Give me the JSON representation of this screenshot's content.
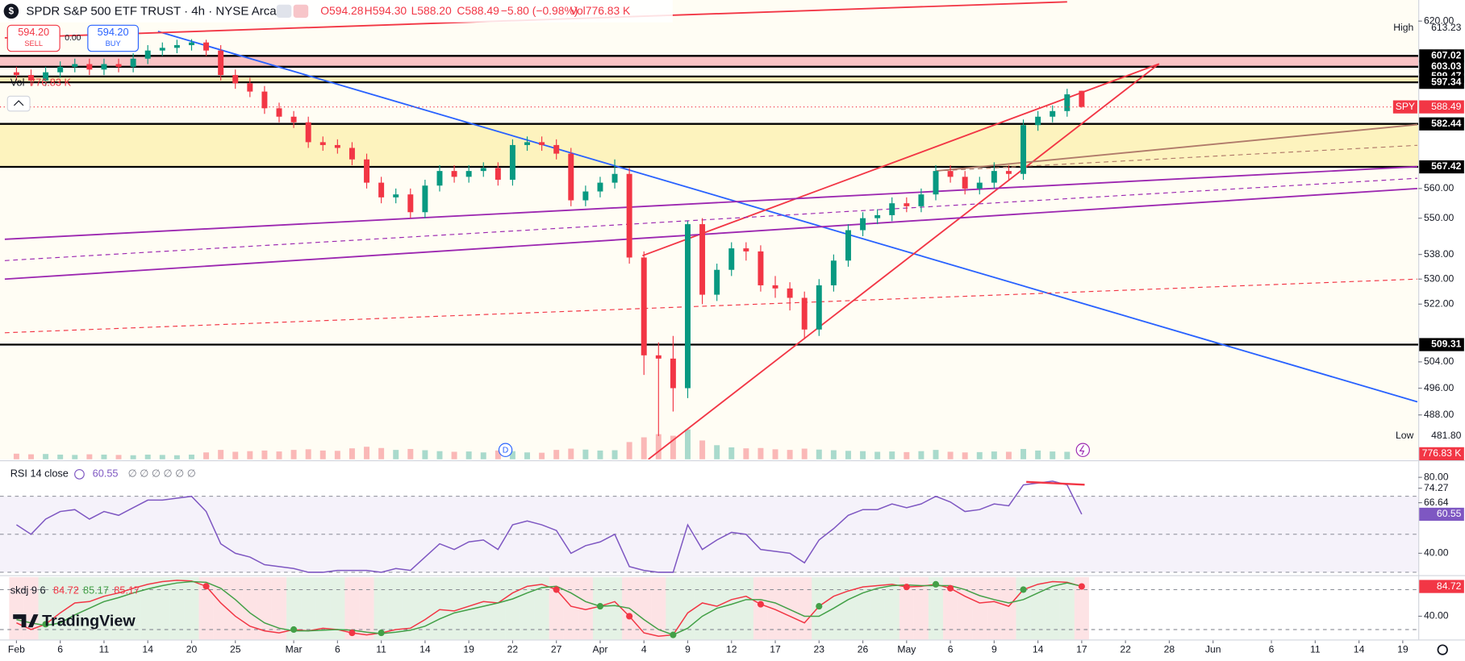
{
  "header": {
    "symbol_icon": "$",
    "open": "O594.28",
    "high": "H594.30",
    "low": "L588.20",
    "close": "C588.49",
    "change": "−5.80 (−0.98%)",
    "volume": "Vol776.83 K"
  },
  "trade": {
    "sell_price": "594.20",
    "sell": "SELL",
    "spread": "0.00",
    "buy_price": "594.20",
    "buy": "BUY"
  },
  "overlay": {
    "vol_label": "Vol",
    "vol_value": "776.83 K",
    "marker": "D",
    "logo": "TradingView"
  },
  "chart_data": [
    {
      "type": "candlestick",
      "title": "SPDR S&P 500 ETF TRUST · 4h · NYSE Arca",
      "x": [
        0,
        1,
        2,
        3,
        4,
        5,
        6,
        7,
        8,
        9,
        10,
        11,
        12,
        13,
        14,
        15,
        16,
        17,
        18,
        19,
        20,
        21,
        22,
        23,
        24,
        25,
        26,
        27,
        28,
        29,
        30,
        31,
        32,
        33,
        34,
        35,
        36,
        37,
        38,
        39,
        40,
        41,
        42,
        43,
        44,
        45,
        46,
        47,
        48,
        49,
        50,
        51,
        52,
        53,
        54,
        55,
        56,
        57,
        58,
        59,
        60,
        61,
        62,
        63,
        64,
        65,
        66,
        67,
        68,
        69,
        70,
        71,
        72,
        73
      ],
      "open": [
        601,
        600,
        598,
        601,
        603,
        604,
        602,
        604,
        603,
        606,
        609,
        610,
        611,
        612,
        609,
        600,
        597,
        594,
        588,
        585,
        583,
        576,
        575,
        574,
        570,
        562,
        557,
        558,
        552,
        561,
        566,
        564,
        566,
        567,
        563,
        575,
        576,
        575,
        572,
        556,
        559,
        562,
        565,
        537,
        506,
        505,
        496,
        548,
        525,
        533,
        540,
        539,
        528,
        527,
        524,
        514,
        528,
        536,
        546,
        550,
        551,
        555,
        554,
        558,
        566,
        564,
        560,
        562,
        566,
        565,
        582,
        585,
        587,
        594.28
      ],
      "high": [
        603,
        602,
        603,
        605,
        606,
        606,
        606,
        606,
        608,
        611,
        612,
        613,
        613.23,
        613,
        611,
        602,
        599,
        596,
        590,
        587,
        585,
        578,
        577,
        576,
        572,
        564,
        560,
        560,
        563,
        568,
        568,
        568,
        569,
        569,
        577,
        578,
        578,
        577,
        574,
        561,
        564,
        570,
        567,
        539,
        510,
        512,
        549,
        550,
        535,
        542,
        542,
        541,
        531,
        529,
        526,
        530,
        538,
        548,
        552,
        553,
        557,
        557,
        560,
        568,
        568,
        566,
        564,
        569,
        568,
        584,
        587,
        589,
        595,
        594.3
      ],
      "low": [
        598,
        596,
        596,
        599,
        601,
        600,
        600,
        601,
        601,
        604,
        607,
        608,
        609,
        607,
        598,
        595,
        592,
        586,
        583,
        581,
        574,
        573,
        572,
        568,
        560,
        555,
        555,
        550,
        550,
        559,
        562,
        562,
        564,
        561,
        561,
        573,
        573,
        570,
        554,
        554,
        557,
        560,
        535,
        500,
        481.8,
        489,
        493,
        522,
        523,
        531,
        536,
        526,
        524,
        520,
        511,
        512,
        526,
        534,
        544,
        548,
        549,
        552,
        552,
        556,
        562,
        558,
        558,
        560,
        563,
        563,
        580,
        583,
        585,
        588.2
      ],
      "close": [
        600,
        598,
        601,
        603,
        604,
        602,
        604,
        603,
        606,
        609,
        610,
        611,
        612,
        609,
        600,
        597,
        594,
        588,
        585,
        583,
        576,
        575,
        574,
        570,
        562,
        557,
        558,
        552,
        561,
        566,
        564,
        566,
        567,
        563,
        575,
        576,
        575,
        572,
        556,
        559,
        562,
        565,
        537,
        506,
        505,
        496,
        548,
        525,
        533,
        540,
        539,
        528,
        527,
        524,
        514,
        528,
        536,
        546,
        550,
        551,
        555,
        554,
        558,
        566,
        564,
        560,
        562,
        566,
        565,
        582,
        585,
        587,
        593,
        588.49
      ],
      "volume": [
        18000,
        16000,
        17000,
        15000,
        14000,
        16000,
        15000,
        14000,
        13000,
        15000,
        14000,
        13000,
        15000,
        22000,
        30000,
        24000,
        26000,
        28000,
        25000,
        30000,
        32000,
        28000,
        27000,
        35000,
        40000,
        36000,
        30000,
        33000,
        29000,
        26000,
        24000,
        25000,
        22000,
        28000,
        26000,
        22000,
        21000,
        30000,
        34000,
        31000,
        28000,
        29000,
        55000,
        70000,
        80000,
        75000,
        95000,
        60000,
        45000,
        38000,
        35000,
        36000,
        32000,
        30000,
        34000,
        31000,
        29000,
        27000,
        26000,
        24000,
        25000,
        23000,
        26000,
        30000,
        24000,
        22000,
        23000,
        25000,
        24000,
        33000,
        28000,
        25000,
        24000,
        776.83
      ],
      "volume_label": "776.83 K",
      "symbol": "SPY",
      "up_color": "#089981",
      "down_color": "#f23645",
      "log_scale": true,
      "ylim": [
        475,
        628
      ],
      "yticks": [
        {
          "value": 620,
          "label": "620.00"
        },
        {
          "value": 560,
          "label": "560.00"
        },
        {
          "value": 550,
          "label": "550.00"
        },
        {
          "value": 538,
          "label": "538.00"
        },
        {
          "value": 530,
          "label": "530.00"
        },
        {
          "value": 522,
          "label": "522.00"
        },
        {
          "value": 504,
          "label": "504.00"
        },
        {
          "value": 496,
          "label": "496.00"
        },
        {
          "value": 488,
          "label": "488.00"
        }
      ],
      "xlim": [
        -1,
        96
      ],
      "xticks": [
        {
          "value": 0,
          "label": "Feb"
        },
        {
          "value": 3,
          "label": "6"
        },
        {
          "value": 6,
          "label": "11"
        },
        {
          "value": 9,
          "label": "14"
        },
        {
          "value": 12,
          "label": "20"
        },
        {
          "value": 15,
          "label": "25"
        },
        {
          "value": 19,
          "label": "Mar"
        },
        {
          "value": 22,
          "label": "6"
        },
        {
          "value": 25,
          "label": "11"
        },
        {
          "value": 28,
          "label": "14"
        },
        {
          "value": 31,
          "label": "19"
        },
        {
          "value": 34,
          "label": "22"
        },
        {
          "value": 37,
          "label": "27"
        },
        {
          "value": 40,
          "label": "Apr"
        },
        {
          "value": 43,
          "label": "4"
        },
        {
          "value": 46,
          "label": "9"
        },
        {
          "value": 49,
          "label": "12"
        },
        {
          "value": 52,
          "label": "17"
        },
        {
          "value": 55,
          "label": "23"
        },
        {
          "value": 58,
          "label": "26"
        },
        {
          "value": 61,
          "label": "May"
        },
        {
          "value": 64,
          "label": "6"
        },
        {
          "value": 67,
          "label": "9"
        },
        {
          "value": 70,
          "label": "14"
        },
        {
          "value": 73,
          "label": "17"
        },
        {
          "value": 76,
          "label": "22"
        },
        {
          "value": 79,
          "label": "28"
        },
        {
          "value": 82,
          "label": "Jun"
        },
        {
          "value": 86,
          "label": "6"
        },
        {
          "value": 89,
          "label": "11"
        },
        {
          "value": 92,
          "label": "14"
        },
        {
          "value": 95,
          "label": "19"
        }
      ],
      "high_text": "High",
      "high_value": "613.23",
      "low_text": "Low",
      "low_value": "481.80",
      "levels": [
        607.02,
        603.03,
        599.47,
        597.34,
        582.44,
        567.42,
        509.31
      ],
      "level_color": "#000000",
      "zones": [
        {
          "from": 603.03,
          "to": 607.02,
          "color": "#f7b4b9"
        },
        {
          "from": 597.34,
          "to": 599.47,
          "color": "#fde9a6"
        },
        {
          "from": 567.42,
          "to": 582.44,
          "color": "#fdf0b0"
        }
      ],
      "trendlines": [
        {
          "x": [
            9.7,
            96
          ],
          "y": [
            616.1,
            491.9
          ],
          "color": "#2962ff",
          "dashed": false
        },
        {
          "x": [
            -0.8,
            72
          ],
          "y": [
            613.7,
            627.3
          ],
          "color": "#f23645",
          "dashed": false
        },
        {
          "x": [
            42.9,
            78.3
          ],
          "y": [
            537.6,
            604.1
          ],
          "color": "#f23645",
          "dashed": false
        },
        {
          "x": [
            43.3,
            78.3
          ],
          "y": [
            475,
            604.1
          ],
          "color": "#f23645",
          "dashed": false
        },
        {
          "x": [
            -0.8,
            96
          ],
          "y": [
            543,
            567.5
          ],
          "color": "#9c27b0",
          "dashed": false
        },
        {
          "x": [
            -0.8,
            96
          ],
          "y": [
            530,
            560
          ],
          "color": "#9c27b0",
          "dashed": false
        },
        {
          "x": [
            -0.8,
            96
          ],
          "y": [
            536,
            563.5
          ],
          "color": "#9c27b0",
          "dashed": true
        },
        {
          "x": [
            -0.8,
            96
          ],
          "y": [
            513,
            530
          ],
          "color": "#f23645",
          "dashed": true
        },
        {
          "x": [
            63,
            96
          ],
          "y": [
            566,
            582.2
          ],
          "color": "#b07a6a",
          "dashed": false
        },
        {
          "x": [
            63,
            96
          ],
          "y": [
            566,
            574.9
          ],
          "color": "#b07a6a",
          "dashed": true
        }
      ]
    },
    {
      "type": "line",
      "title": "RSI 14 close",
      "legend_extra": "∅ ∅ ∅ ∅ ∅ ∅",
      "color": "#7e57c2",
      "values": [
        55,
        50,
        58,
        62,
        63,
        58,
        62,
        60,
        64,
        68,
        68,
        69,
        70,
        62,
        45,
        40,
        38,
        34,
        33,
        32,
        30,
        30,
        31,
        31,
        31,
        30,
        32,
        31,
        38,
        45,
        42,
        46,
        47,
        42,
        55,
        57,
        55,
        52,
        40,
        44,
        46,
        50,
        33,
        31,
        30,
        30,
        55,
        42,
        47,
        51,
        50,
        42,
        41,
        40,
        35,
        47,
        53,
        60,
        63,
        63,
        66,
        64,
        66,
        70,
        67,
        62,
        63,
        66,
        65,
        76,
        77,
        78,
        76,
        60.55
      ],
      "ylim": [
        29,
        88
      ],
      "yticks": [
        {
          "value": 80,
          "label": "80.00"
        },
        74.27,
        66.64,
        {
          "value": 40,
          "label": "40.00"
        }
      ],
      "band": [
        30,
        70
      ],
      "hlines": [
        70,
        50,
        30
      ],
      "lines": [
        {
          "x": [
            69.2,
            73.2
          ],
          "y": [
            77.6,
            76.1
          ],
          "color": "#f23645"
        }
      ]
    },
    {
      "type": "line",
      "title": "skdj 9 6",
      "legend_values": [
        84.72,
        85.17,
        85.17
      ],
      "series": [
        {
          "color": "#f23645",
          "values": [
            30,
            20,
            28,
            45,
            60,
            62,
            70,
            75,
            82,
            88,
            92,
            94,
            93,
            85,
            60,
            40,
            25,
            18,
            15,
            20,
            18,
            22,
            20,
            15,
            12,
            15,
            20,
            22,
            35,
            50,
            48,
            55,
            62,
            60,
            75,
            85,
            88,
            80,
            55,
            50,
            55,
            62,
            40,
            15,
            10,
            12,
            45,
            60,
            55,
            65,
            70,
            58,
            50,
            40,
            30,
            55,
            70,
            78,
            84,
            86,
            88,
            84,
            85,
            88,
            82,
            70,
            60,
            62,
            55,
            80,
            88,
            92,
            91,
            84.72
          ]
        },
        {
          "color": "#43a047",
          "values": [
            35,
            30,
            26,
            30,
            42,
            52,
            62,
            68,
            75,
            81,
            86,
            90,
            92,
            91,
            82,
            65,
            45,
            30,
            22,
            18,
            18,
            19,
            20,
            19,
            16,
            14,
            16,
            19,
            25,
            36,
            45,
            50,
            55,
            60,
            66,
            75,
            83,
            85,
            75,
            62,
            55,
            56,
            52,
            35,
            20,
            12,
            22,
            40,
            52,
            58,
            65,
            65,
            60,
            50,
            40,
            40,
            52,
            65,
            75,
            82,
            86,
            87,
            86,
            86,
            86,
            80,
            71,
            65,
            60,
            65,
            75,
            85,
            90,
            85.17
          ]
        }
      ],
      "ylim": [
        5,
        99
      ],
      "yticks": [
        {
          "value": 40,
          "label": "40.00"
        }
      ],
      "hlines": [
        80,
        20
      ]
    }
  ]
}
